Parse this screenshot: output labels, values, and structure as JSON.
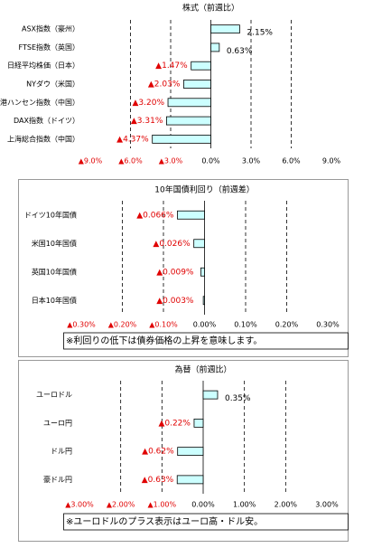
{
  "chart_data": [
    {
      "type": "bar",
      "orientation": "horizontal",
      "title": "株式（前週比）",
      "categories": [
        "ASX指数（豪州）",
        "FTSE指数（英国）",
        "日経平均株価（日本）",
        "NYダウ（米国）",
        "香港ハンセン指数（中国）",
        "DAX指数（ドイツ）",
        "上海総合指数（中国）"
      ],
      "values": [
        2.15,
        0.63,
        -1.47,
        -2.03,
        -3.2,
        -3.31,
        -4.37
      ],
      "value_labels": [
        "2.15%",
        "0.63%",
        "▲1.47%",
        "▲2.03%",
        "▲3.20%",
        "▲3.31%",
        "▲4.37%"
      ],
      "color": "#ccffff",
      "xlim": [
        -9,
        9
      ],
      "xticks": [
        {
          "value": -9,
          "label": "▲9.0%"
        },
        {
          "value": -6,
          "label": "▲6.0%"
        },
        {
          "value": -3,
          "label": "▲3.0%"
        },
        {
          "value": 0,
          "label": "0.0%"
        },
        {
          "value": 3,
          "label": "3.0%"
        },
        {
          "value": 6,
          "label": "6.0%"
        },
        {
          "value": 9,
          "label": "9.0%"
        }
      ],
      "grid": true
    },
    {
      "type": "bar",
      "orientation": "horizontal",
      "title": "10年国債利回り（前週差）",
      "categories": [
        "ドイツ10年国債",
        "米国10年国債",
        "英国10年国債",
        "日本10年国債"
      ],
      "values": [
        -0.066,
        -0.026,
        -0.009,
        -0.003
      ],
      "value_labels": [
        "▲0.066%",
        "▲0.026%",
        "▲0.009%",
        "▲0.003%"
      ],
      "color": "#ccffff",
      "xlim": [
        -0.3,
        0.3
      ],
      "xticks": [
        {
          "value": -0.3,
          "label": "▲0.30%"
        },
        {
          "value": -0.2,
          "label": "▲0.20%"
        },
        {
          "value": -0.1,
          "label": "▲0.10%"
        },
        {
          "value": 0,
          "label": "0.00%"
        },
        {
          "value": 0.1,
          "label": "0.10%"
        },
        {
          "value": 0.2,
          "label": "0.20%"
        },
        {
          "value": 0.3,
          "label": "0.30%"
        }
      ],
      "grid": true,
      "note": "※利回りの低下は債券価格の上昇を意味します。"
    },
    {
      "type": "bar",
      "orientation": "horizontal",
      "title": "為替（前週比）",
      "categories": [
        "ユーロドル",
        "ユーロ円",
        "ドル円",
        "豪ドル円"
      ],
      "values": [
        0.35,
        -0.22,
        -0.62,
        -0.63
      ],
      "value_labels": [
        "0.35%",
        "▲0.22%",
        "▲0.62%",
        "▲0.63%"
      ],
      "color": "#ccffff",
      "xlim": [
        -3,
        3
      ],
      "xticks": [
        {
          "value": -3,
          "label": "▲3.00%"
        },
        {
          "value": -2,
          "label": "▲2.00%"
        },
        {
          "value": -1,
          "label": "▲1.00%"
        },
        {
          "value": 0,
          "label": "0.00%"
        },
        {
          "value": 1,
          "label": "1.00%"
        },
        {
          "value": 2,
          "label": "2.00%"
        },
        {
          "value": 3,
          "label": "3.00%"
        }
      ],
      "grid": true,
      "note": "※ユーロドルのプラス表示はユーロ高・ドル安。"
    }
  ]
}
